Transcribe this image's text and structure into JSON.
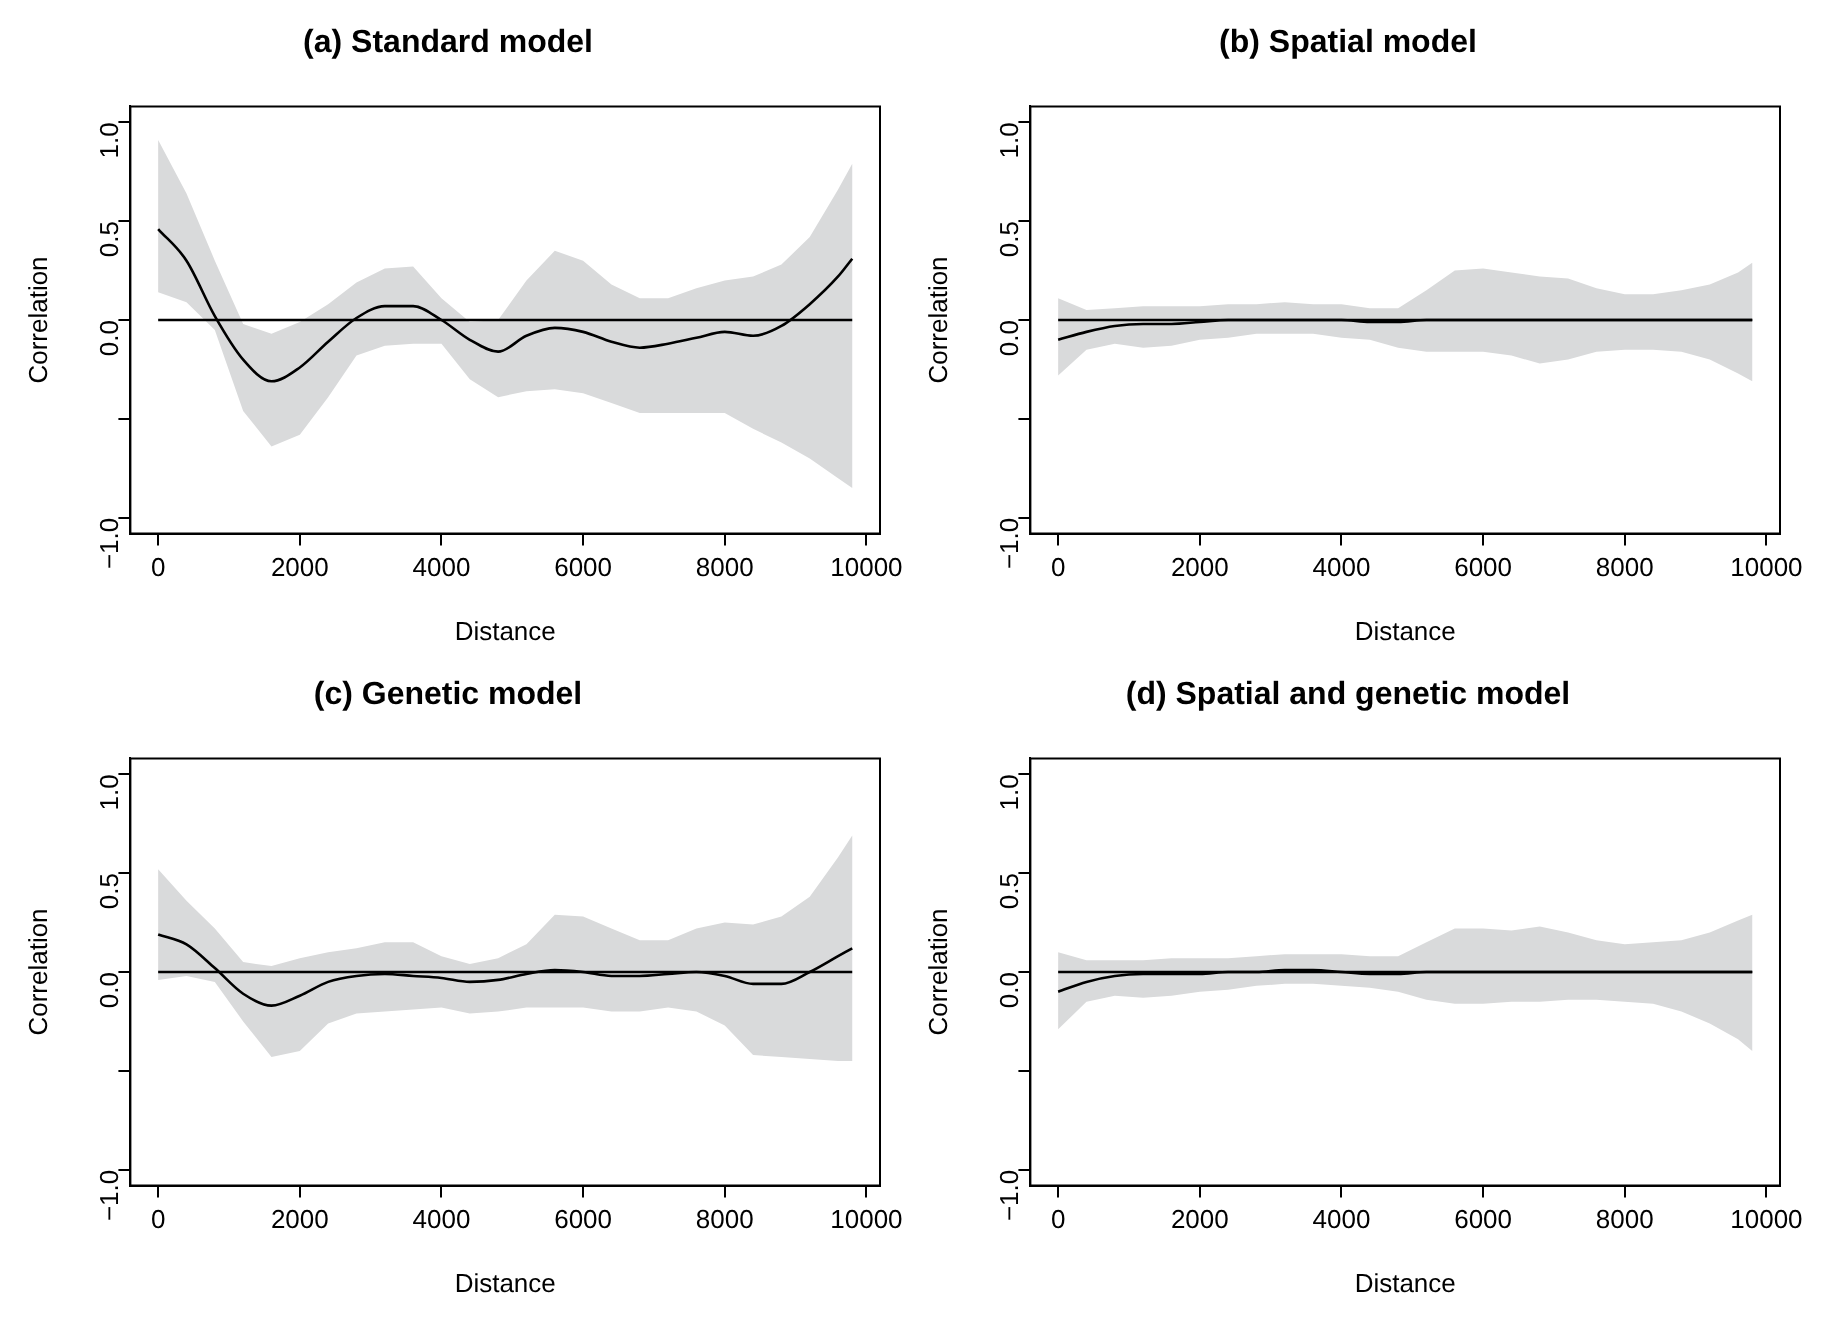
{
  "chart_data": [
    {
      "type": "line",
      "title": "(a) Standard model",
      "xlabel": "Distance",
      "ylabel": "Correlation",
      "x": [
        0,
        400,
        800,
        1200,
        1600,
        2000,
        2400,
        2800,
        3200,
        3600,
        4000,
        4400,
        4800,
        5200,
        5600,
        6000,
        6400,
        6800,
        7200,
        7600,
        8000,
        8400,
        8800,
        9200,
        9600,
        9800
      ],
      "series": [
        {
          "color": "#000000",
          "values": [
            0.46,
            0.3,
            0.02,
            -0.2,
            -0.31,
            -0.24,
            -0.11,
            0.01,
            0.07,
            0.07,
            0.0,
            -0.1,
            -0.16,
            -0.08,
            -0.04,
            -0.06,
            -0.11,
            -0.14,
            -0.12,
            -0.09,
            -0.06,
            -0.08,
            -0.03,
            0.08,
            0.22,
            0.31
          ],
          "upper": [
            0.91,
            0.64,
            0.3,
            -0.02,
            -0.07,
            -0.01,
            0.08,
            0.19,
            0.26,
            0.27,
            0.11,
            -0.01,
            0.0,
            0.2,
            0.35,
            0.3,
            0.18,
            0.11,
            0.11,
            0.16,
            0.2,
            0.22,
            0.28,
            0.42,
            0.66,
            0.79
          ],
          "lower": [
            0.14,
            0.09,
            -0.05,
            -0.46,
            -0.64,
            -0.58,
            -0.39,
            -0.18,
            -0.13,
            -0.12,
            -0.12,
            -0.3,
            -0.39,
            -0.36,
            -0.35,
            -0.37,
            -0.42,
            -0.47,
            -0.47,
            -0.47,
            -0.47,
            -0.55,
            -0.62,
            -0.7,
            -0.8,
            -0.85
          ]
        }
      ],
      "ref_lines": [
        {
          "axis": "y",
          "value": 0,
          "color": "#000000"
        }
      ],
      "xlim": [
        -392,
        10192
      ],
      "xticks": [
        0,
        2000,
        4000,
        6000,
        8000,
        10000
      ],
      "ylim": [
        -1.08,
        1.08
      ],
      "yticks": [
        {
          "value": -1,
          "label": "−1.0"
        },
        {
          "value": -0.5,
          "label": null
        },
        {
          "value": 0,
          "label": "0.0"
        },
        {
          "value": 0.5,
          "label": "0.5"
        },
        {
          "value": 1,
          "label": "1.0"
        }
      ],
      "grid": false,
      "legend": false
    },
    {
      "type": "line",
      "title": "(b) Spatial model",
      "xlabel": "Distance",
      "ylabel": "Correlation",
      "x": [
        0,
        400,
        800,
        1200,
        1600,
        2000,
        2400,
        2800,
        3200,
        3600,
        4000,
        4400,
        4800,
        5200,
        5600,
        6000,
        6400,
        6800,
        7200,
        7600,
        8000,
        8400,
        8800,
        9200,
        9600,
        9800
      ],
      "series": [
        {
          "color": "#000000",
          "values": [
            -0.1,
            -0.06,
            -0.03,
            -0.02,
            -0.02,
            -0.01,
            0.0,
            0.0,
            0.0,
            0.0,
            0.0,
            -0.01,
            -0.01,
            0.0,
            0.0,
            0.0,
            0.0,
            0.0,
            0.0,
            0.0,
            0.0,
            0.0,
            0.0,
            0.0,
            0.0,
            0.0
          ],
          "upper": [
            0.11,
            0.05,
            0.06,
            0.07,
            0.07,
            0.07,
            0.08,
            0.08,
            0.09,
            0.08,
            0.08,
            0.06,
            0.06,
            0.15,
            0.25,
            0.26,
            0.24,
            0.22,
            0.21,
            0.16,
            0.13,
            0.13,
            0.15,
            0.18,
            0.24,
            0.29
          ],
          "lower": [
            -0.28,
            -0.15,
            -0.12,
            -0.14,
            -0.13,
            -0.1,
            -0.09,
            -0.07,
            -0.07,
            -0.07,
            -0.09,
            -0.1,
            -0.14,
            -0.16,
            -0.16,
            -0.16,
            -0.18,
            -0.22,
            -0.2,
            -0.16,
            -0.15,
            -0.15,
            -0.16,
            -0.2,
            -0.27,
            -0.31
          ]
        }
      ],
      "ref_lines": [
        {
          "axis": "y",
          "value": 0,
          "color": "#000000"
        }
      ],
      "xlim": [
        -392,
        10192
      ],
      "xticks": [
        0,
        2000,
        4000,
        6000,
        8000,
        10000
      ],
      "ylim": [
        -1.08,
        1.08
      ],
      "yticks": [
        {
          "value": -1,
          "label": "−1.0"
        },
        {
          "value": -0.5,
          "label": null
        },
        {
          "value": 0,
          "label": "0.0"
        },
        {
          "value": 0.5,
          "label": "0.5"
        },
        {
          "value": 1,
          "label": "1.0"
        }
      ],
      "grid": false,
      "legend": false
    },
    {
      "type": "line",
      "title": "(c) Genetic model",
      "xlabel": "Distance",
      "ylabel": "Correlation",
      "x": [
        0,
        400,
        800,
        1200,
        1600,
        2000,
        2400,
        2800,
        3200,
        3600,
        4000,
        4400,
        4800,
        5200,
        5600,
        6000,
        6400,
        6800,
        7200,
        7600,
        8000,
        8400,
        8800,
        9200,
        9600,
        9800
      ],
      "series": [
        {
          "color": "#000000",
          "values": [
            0.19,
            0.14,
            0.02,
            -0.11,
            -0.17,
            -0.12,
            -0.05,
            -0.02,
            -0.01,
            -0.02,
            -0.03,
            -0.05,
            -0.04,
            -0.01,
            0.01,
            0.0,
            -0.02,
            -0.02,
            -0.01,
            0.0,
            -0.02,
            -0.06,
            -0.06,
            0.0,
            0.08,
            0.12
          ],
          "upper": [
            0.52,
            0.36,
            0.22,
            0.05,
            0.03,
            0.07,
            0.1,
            0.12,
            0.15,
            0.15,
            0.08,
            0.04,
            0.07,
            0.14,
            0.29,
            0.28,
            0.22,
            0.16,
            0.16,
            0.22,
            0.25,
            0.24,
            0.28,
            0.38,
            0.58,
            0.69
          ],
          "lower": [
            -0.04,
            -0.02,
            -0.05,
            -0.25,
            -0.43,
            -0.4,
            -0.26,
            -0.21,
            -0.2,
            -0.19,
            -0.18,
            -0.21,
            -0.2,
            -0.18,
            -0.18,
            -0.18,
            -0.2,
            -0.2,
            -0.18,
            -0.2,
            -0.27,
            -0.42,
            -0.43,
            -0.44,
            -0.45,
            -0.45
          ]
        }
      ],
      "ref_lines": [
        {
          "axis": "y",
          "value": 0,
          "color": "#000000"
        }
      ],
      "xlim": [
        -392,
        10192
      ],
      "xticks": [
        0,
        2000,
        4000,
        6000,
        8000,
        10000
      ],
      "ylim": [
        -1.08,
        1.08
      ],
      "yticks": [
        {
          "value": -1,
          "label": "−1.0"
        },
        {
          "value": -0.5,
          "label": null
        },
        {
          "value": 0,
          "label": "0.0"
        },
        {
          "value": 0.5,
          "label": "0.5"
        },
        {
          "value": 1,
          "label": "1.0"
        }
      ],
      "grid": false,
      "legend": false
    },
    {
      "type": "line",
      "title": "(d) Spatial and genetic model",
      "xlabel": "Distance",
      "ylabel": "Correlation",
      "x": [
        0,
        400,
        800,
        1200,
        1600,
        2000,
        2400,
        2800,
        3200,
        3600,
        4000,
        4400,
        4800,
        5200,
        5600,
        6000,
        6400,
        6800,
        7200,
        7600,
        8000,
        8400,
        8800,
        9200,
        9600,
        9800
      ],
      "series": [
        {
          "color": "#000000",
          "values": [
            -0.1,
            -0.05,
            -0.02,
            -0.01,
            -0.01,
            -0.01,
            0.0,
            0.0,
            0.01,
            0.01,
            0.0,
            -0.01,
            -0.01,
            0.0,
            0.0,
            0.0,
            0.0,
            0.0,
            0.0,
            0.0,
            0.0,
            0.0,
            0.0,
            0.0,
            0.0,
            0.0
          ],
          "upper": [
            0.1,
            0.06,
            0.06,
            0.06,
            0.07,
            0.07,
            0.07,
            0.08,
            0.09,
            0.09,
            0.09,
            0.08,
            0.08,
            0.15,
            0.22,
            0.22,
            0.21,
            0.23,
            0.2,
            0.16,
            0.14,
            0.15,
            0.16,
            0.2,
            0.26,
            0.29
          ],
          "lower": [
            -0.29,
            -0.15,
            -0.12,
            -0.13,
            -0.12,
            -0.1,
            -0.09,
            -0.07,
            -0.06,
            -0.06,
            -0.07,
            -0.08,
            -0.1,
            -0.14,
            -0.16,
            -0.16,
            -0.15,
            -0.15,
            -0.14,
            -0.14,
            -0.15,
            -0.16,
            -0.2,
            -0.26,
            -0.34,
            -0.4
          ]
        }
      ],
      "ref_lines": [
        {
          "axis": "y",
          "value": 0,
          "color": "#000000"
        }
      ],
      "xlim": [
        -392,
        10192
      ],
      "xticks": [
        0,
        2000,
        4000,
        6000,
        8000,
        10000
      ],
      "ylim": [
        -1.08,
        1.08
      ],
      "yticks": [
        {
          "value": -1,
          "label": "−1.0"
        },
        {
          "value": -0.5,
          "label": null
        },
        {
          "value": 0,
          "label": "0.0"
        },
        {
          "value": 0.5,
          "label": "0.5"
        },
        {
          "value": 1,
          "label": "1.0"
        }
      ],
      "grid": false,
      "legend": false
    }
  ]
}
